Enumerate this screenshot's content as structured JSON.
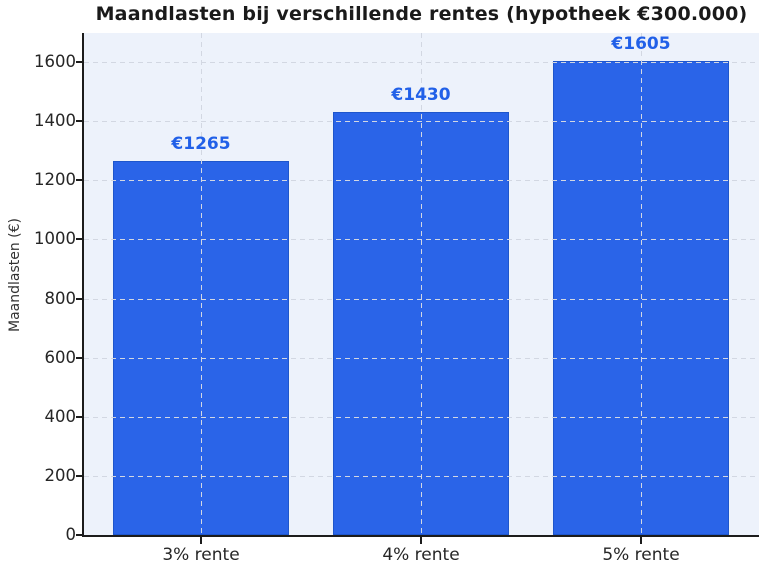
{
  "chart_data": {
    "type": "bar",
    "title": "Maandlasten bij verschillende rentes (hypotheek €300.000)",
    "categories": [
      "3% rente",
      "4% rente",
      "5% rente"
    ],
    "values": [
      1265,
      1430,
      1605
    ],
    "bar_labels": [
      "€1265",
      "€1430",
      "€1605"
    ],
    "xlabel": "",
    "ylabel": "Maandlasten (€)",
    "yticks": [
      0,
      200,
      400,
      600,
      800,
      1000,
      1200,
      1400,
      1600
    ],
    "ylim": [
      0,
      1698
    ],
    "grid": {
      "style": "dashed",
      "horizontal": true,
      "vertical": true
    },
    "legend": "none",
    "colors": {
      "bar_fill": "#2a64e8",
      "bar_edge": "#1e56cc",
      "bar_label": "#2160e8",
      "plot_background": "#edf2fb",
      "figure_background": "#ffffff",
      "spine": "#1c1c1c",
      "grid_line": "#d2d7e2",
      "tick_label": "#262626",
      "title": "#1a1a1a"
    }
  }
}
